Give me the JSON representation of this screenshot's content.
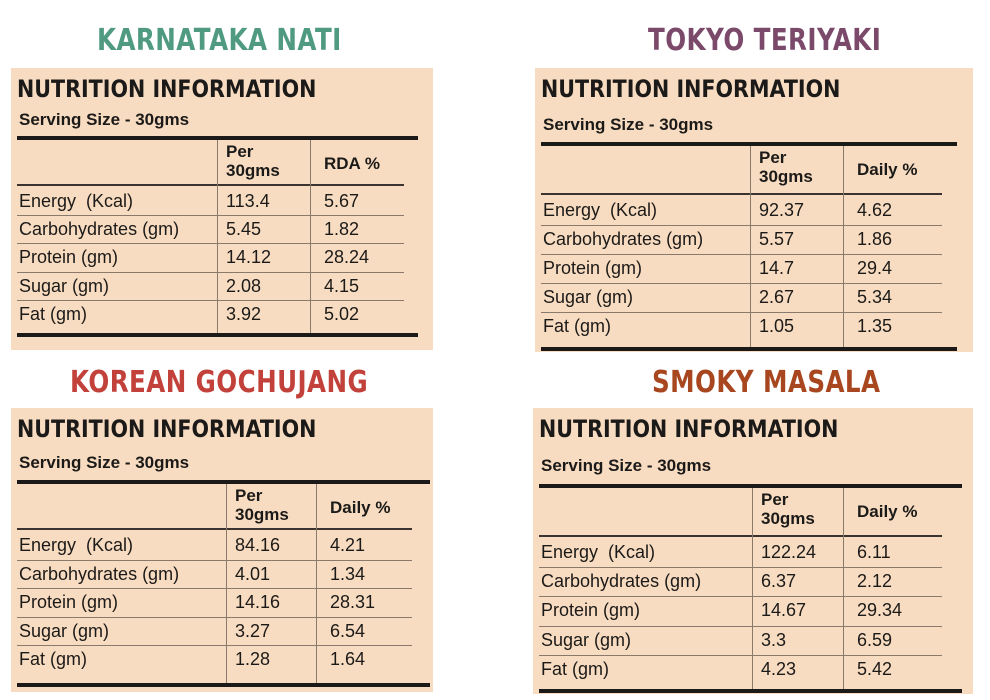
{
  "panels": [
    {
      "id": "karnataka",
      "flavor": "KARNATAKA NATI",
      "color": "#4f9a80",
      "heading": "NUTRITION INFORMATION",
      "serving": "Serving Size - 30gms",
      "col1_header": "Per\n30gms",
      "col2_header": "RDA %",
      "rows": [
        {
          "label": "Energy  (Kcal)",
          "per": "113.4",
          "pct": "5.67"
        },
        {
          "label": "Carbohydrates (gm)",
          "per": "5.45",
          "pct": "1.82"
        },
        {
          "label": "Protein (gm)",
          "per": "14.12",
          "pct": "28.24"
        },
        {
          "label": "Sugar (gm)",
          "per": "2.08",
          "pct": "4.15"
        },
        {
          "label": "Fat (gm)",
          "per": "3.92",
          "pct": "5.02"
        }
      ]
    },
    {
      "id": "tokyo",
      "flavor": "TOKYO TERIYAKI",
      "color": "#7b4a6b",
      "heading": "NUTRITION INFORMATION",
      "serving": "Serving Size - 30gms",
      "col1_header": "Per\n30gms",
      "col2_header": "Daily %",
      "rows": [
        {
          "label": "Energy  (Kcal)",
          "per": "92.37",
          "pct": "4.62"
        },
        {
          "label": "Carbohydrates (gm)",
          "per": "5.57",
          "pct": "1.86"
        },
        {
          "label": "Protein (gm)",
          "per": "14.7",
          "pct": "29.4"
        },
        {
          "label": "Sugar (gm)",
          "per": "2.67",
          "pct": "5.34"
        },
        {
          "label": "Fat (gm)",
          "per": "1.05",
          "pct": "1.35"
        }
      ]
    },
    {
      "id": "korean",
      "flavor": "KOREAN GOCHUJANG",
      "color": "#c2413a",
      "heading": "NUTRITION INFORMATION",
      "serving": "Serving Size - 30gms",
      "col1_header": "Per\n30gms",
      "col2_header": "Daily %",
      "rows": [
        {
          "label": "Energy  (Kcal)",
          "per": "84.16",
          "pct": "4.21"
        },
        {
          "label": "Carbohydrates (gm)",
          "per": "4.01",
          "pct": "1.34"
        },
        {
          "label": "Protein (gm)",
          "per": "14.16",
          "pct": "28.31"
        },
        {
          "label": "Sugar (gm)",
          "per": "3.27",
          "pct": "6.54"
        },
        {
          "label": "Fat (gm)",
          "per": "1.28",
          "pct": "1.64"
        }
      ]
    },
    {
      "id": "smoky",
      "flavor": "SMOKY MASALA",
      "color": "#a8471f",
      "heading": "NUTRITION INFORMATION",
      "serving": "Serving Size - 30gms",
      "col1_header": "Per\n30gms",
      "col2_header": "Daily %",
      "rows": [
        {
          "label": "Energy  (Kcal)",
          "per": "122.24",
          "pct": "6.11"
        },
        {
          "label": "Carbohydrates (gm)",
          "per": "6.37",
          "pct": "2.12"
        },
        {
          "label": "Protein (gm)",
          "per": "14.67",
          "pct": "29.34"
        },
        {
          "label": "Sugar (gm)",
          "per": "3.3",
          "pct": "6.59"
        },
        {
          "label": "Fat (gm)",
          "per": "4.23",
          "pct": "5.42"
        }
      ]
    }
  ]
}
